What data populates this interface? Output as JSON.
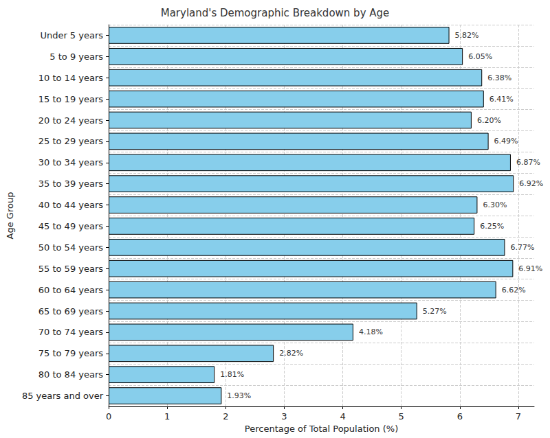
{
  "chart_data": {
    "type": "bar",
    "orientation": "horizontal",
    "title": "Maryland's Demographic Breakdown by Age",
    "x_label": "Percentage of Total Population (%)",
    "y_label": "Age Group",
    "categories": [
      "Under 5 years",
      "5 to 9 years",
      "10 to 14 years",
      "15 to 19 years",
      "20 to 24 years",
      "25 to 29 years",
      "30 to 34 years",
      "35 to 39 years",
      "40 to 44 years",
      "45 to 49 years",
      "50 to 54 years",
      "55 to 59 years",
      "60 to 64 years",
      "65 to 69 years",
      "70 to 74 years",
      "75 to 79 years",
      "80 to 84 years",
      "85 years and over"
    ],
    "values": [
      5.82,
      6.05,
      6.38,
      6.41,
      6.2,
      6.49,
      6.87,
      6.92,
      6.3,
      6.25,
      6.77,
      6.91,
      6.62,
      5.27,
      4.18,
      2.82,
      1.81,
      1.93
    ],
    "value_labels": [
      "5.82%",
      "6.05%",
      "6.38%",
      "6.41%",
      "6.20%",
      "6.49%",
      "6.87%",
      "6.92%",
      "6.30%",
      "6.25%",
      "6.77%",
      "6.91%",
      "6.62%",
      "5.27%",
      "4.18%",
      "2.82%",
      "1.81%",
      "1.93%"
    ],
    "color": "#87ceeb",
    "xlim": [
      0,
      7.27
    ],
    "xticks": [
      0,
      1,
      2,
      3,
      4,
      5,
      6,
      7
    ],
    "grid": true,
    "data_labels": true
  }
}
